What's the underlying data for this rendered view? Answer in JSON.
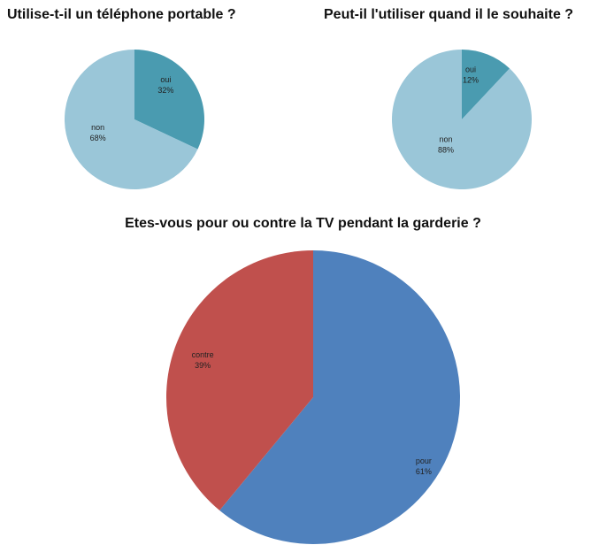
{
  "chart_data": [
    {
      "type": "pie",
      "title": "Utilise-t-il un téléphone portable ?",
      "slices": [
        {
          "label": "oui",
          "value": 32,
          "value_label": "32%",
          "color": "#4a9bb0"
        },
        {
          "label": "non",
          "value": 68,
          "value_label": "68%",
          "color": "#9ac6d8"
        }
      ],
      "start": "top",
      "direction": "clockwise"
    },
    {
      "type": "pie",
      "title": "Peut-il l'utiliser quand il le souhaite ?",
      "slices": [
        {
          "label": "oui",
          "value": 12,
          "value_label": "12%",
          "color": "#4a9bb0"
        },
        {
          "label": "non",
          "value": 88,
          "value_label": "88%",
          "color": "#9ac6d8"
        }
      ],
      "start": "top",
      "direction": "clockwise"
    },
    {
      "type": "pie",
      "title": "Etes-vous pour ou contre la TV pendant la garderie ?",
      "slices": [
        {
          "label": "pour",
          "value": 61,
          "value_label": "61%",
          "color": "#4f81bd"
        },
        {
          "label": "contre",
          "value": 39,
          "value_label": "39%",
          "color": "#c0504d"
        }
      ],
      "start": "top",
      "direction": "clockwise"
    }
  ]
}
